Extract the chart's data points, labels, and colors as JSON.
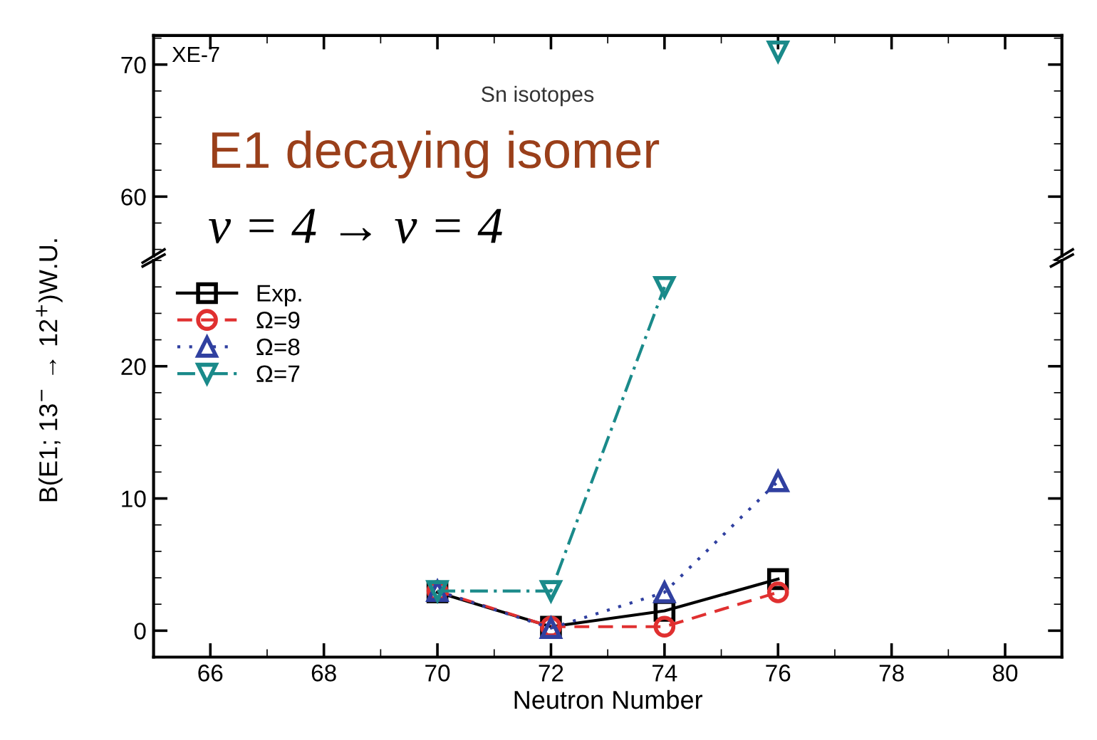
{
  "chart_data": [
    {
      "type": "line",
      "x": [
        76
      ],
      "xlim": [
        65,
        81
      ],
      "xticks": [
        66,
        68,
        70,
        72,
        74,
        76,
        78,
        80
      ],
      "ylim": [
        55.5,
        72.2
      ],
      "yticks": [
        60,
        70
      ],
      "tick_labels": "y",
      "grid": false,
      "legend": false,
      "annotations": [
        "XE-7",
        "Sn isotopes",
        "E1 decaying isomer",
        "v = 4 → v = 4"
      ],
      "series": [
        {
          "color": "#1a8a8a",
          "values": [
            71
          ],
          "marker": "triangle_down",
          "line_style": "dashdot"
        }
      ]
    },
    {
      "type": "line",
      "x": [
        70,
        72,
        74,
        76
      ],
      "xlim": [
        65,
        81
      ],
      "xticks": [
        66,
        68,
        70,
        72,
        74,
        76,
        78,
        80
      ],
      "ylim": [
        -2,
        28
      ],
      "yticks": [
        0,
        10,
        20
      ],
      "xlabel": "Neutron Number",
      "ylabel": "B(E1; 13$^{−}$ → 12$^{+}$)W.U.",
      "grid": false,
      "legend": "top left",
      "series": [
        {
          "name": "Exp.",
          "color": "#000000",
          "values": [
            2.9,
            0.3,
            1.5,
            3.9
          ],
          "marker": "square",
          "line_style": "solid"
        },
        {
          "name": "Ω=9",
          "color": "#e03030",
          "values": [
            3.0,
            0.3,
            0.3,
            2.9
          ],
          "marker": "circle",
          "line_style": "dashed"
        },
        {
          "name": "Ω=8",
          "color": "#3040a0",
          "values": [
            3.0,
            0.2,
            2.9,
            11.3
          ],
          "marker": "triangle",
          "line_style": "dotted"
        },
        {
          "name": "Ω=7",
          "color": "#1a8a8a",
          "values": [
            3.0,
            3.0,
            26,
            null
          ],
          "marker": "triangle_down",
          "line_style": "dashdot"
        }
      ]
    }
  ]
}
